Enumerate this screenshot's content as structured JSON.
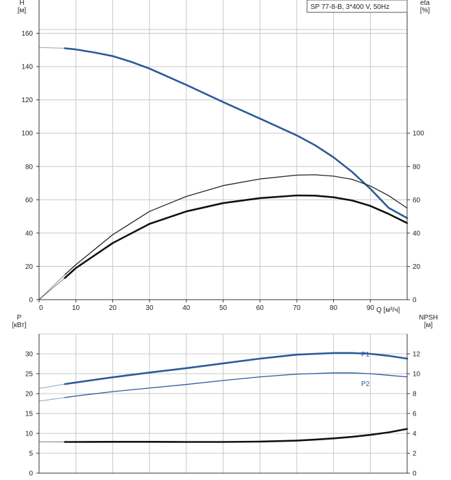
{
  "chart_data": [
    {
      "type": "line",
      "legend": "SP 77-8-B, 3*400 V, 50Hz",
      "xlabel": "Q [м³/ч]",
      "xlim": [
        0,
        100
      ],
      "xticks": [
        0,
        10,
        20,
        30,
        40,
        50,
        60,
        70,
        80,
        90
      ],
      "ylabel_left": "H\n[м]",
      "ylim_left": [
        0,
        180
      ],
      "yticks_left": [
        0,
        20,
        40,
        60,
        80,
        100,
        120,
        140,
        160
      ],
      "ylabel_right": "eta\n[%]",
      "ylim_right": [
        0,
        180
      ],
      "yticks_right": [
        0,
        20,
        40,
        60,
        80,
        100
      ],
      "grid": true,
      "series": [
        {
          "color": "#2a5a9a",
          "axis": "left",
          "weight": "thick",
          "x": [
            0,
            7,
            10,
            15,
            20,
            25,
            30,
            40,
            50,
            60,
            70,
            75,
            80,
            85,
            90,
            95,
            100
          ],
          "y": [
            151.5,
            151,
            150.3,
            148.5,
            146.3,
            142.9,
            138.8,
            129,
            118.7,
            108.8,
            98.7,
            92.7,
            85.5,
            76.8,
            66.6,
            55.1,
            49
          ]
        },
        {
          "color": "#222222",
          "axis": "right",
          "weight": "thin",
          "x": [
            0,
            7,
            10,
            20,
            30,
            40,
            50,
            60,
            70,
            75,
            80,
            85,
            90,
            95,
            100
          ],
          "y": [
            0,
            15,
            21,
            39,
            53,
            62,
            68.5,
            72.5,
            74.8,
            75,
            74.2,
            72.3,
            68.3,
            62.5,
            55
          ]
        },
        {
          "color": "#111111",
          "axis": "right",
          "weight": "thick",
          "x": [
            0,
            7,
            10,
            20,
            30,
            40,
            50,
            60,
            70,
            75,
            80,
            85,
            90,
            95,
            100
          ],
          "y": [
            0,
            13,
            19,
            34,
            45.5,
            53,
            58,
            61,
            62.6,
            62.5,
            61.5,
            59.6,
            56.3,
            51.5,
            46
          ]
        }
      ]
    },
    {
      "type": "line",
      "xlim": [
        0,
        100
      ],
      "ylabel_left": "P\n[кВт]",
      "ylim_left": [
        0,
        35
      ],
      "yticks_left": [
        0,
        5,
        10,
        15,
        20,
        25,
        30
      ],
      "ylabel_right": "NPSH\n[м]",
      "ylim_right": [
        0,
        14
      ],
      "yticks_right": [
        0,
        2,
        4,
        6,
        8,
        10,
        12
      ],
      "grid": true,
      "series": [
        {
          "name": "P1",
          "color": "#2a5a9a",
          "axis": "left",
          "weight": "thick",
          "x": [
            0,
            7,
            10,
            20,
            30,
            40,
            50,
            60,
            70,
            80,
            85,
            90,
            95,
            100
          ],
          "y": [
            21.3,
            22.4,
            22.8,
            24.1,
            25.3,
            26.4,
            27.6,
            28.8,
            29.8,
            30.2,
            30.2,
            30.0,
            29.5,
            28.8
          ]
        },
        {
          "name": "P2",
          "color": "#2a5a9a",
          "axis": "left",
          "weight": "thin",
          "x": [
            0,
            7,
            10,
            20,
            30,
            40,
            50,
            60,
            70,
            80,
            85,
            90,
            95,
            100
          ],
          "y": [
            18.1,
            19.0,
            19.4,
            20.5,
            21.4,
            22.3,
            23.3,
            24.2,
            24.9,
            25.2,
            25.2,
            25.0,
            24.6,
            24.2
          ]
        },
        {
          "color": "#111111",
          "axis": "right",
          "weight": "thick",
          "x": [
            0,
            7,
            10,
            20,
            30,
            40,
            50,
            60,
            70,
            75,
            80,
            85,
            90,
            95,
            100
          ],
          "y": [
            3.15,
            3.14,
            3.14,
            3.15,
            3.15,
            3.14,
            3.14,
            3.17,
            3.27,
            3.37,
            3.5,
            3.65,
            3.85,
            4.1,
            4.45
          ]
        }
      ]
    }
  ]
}
